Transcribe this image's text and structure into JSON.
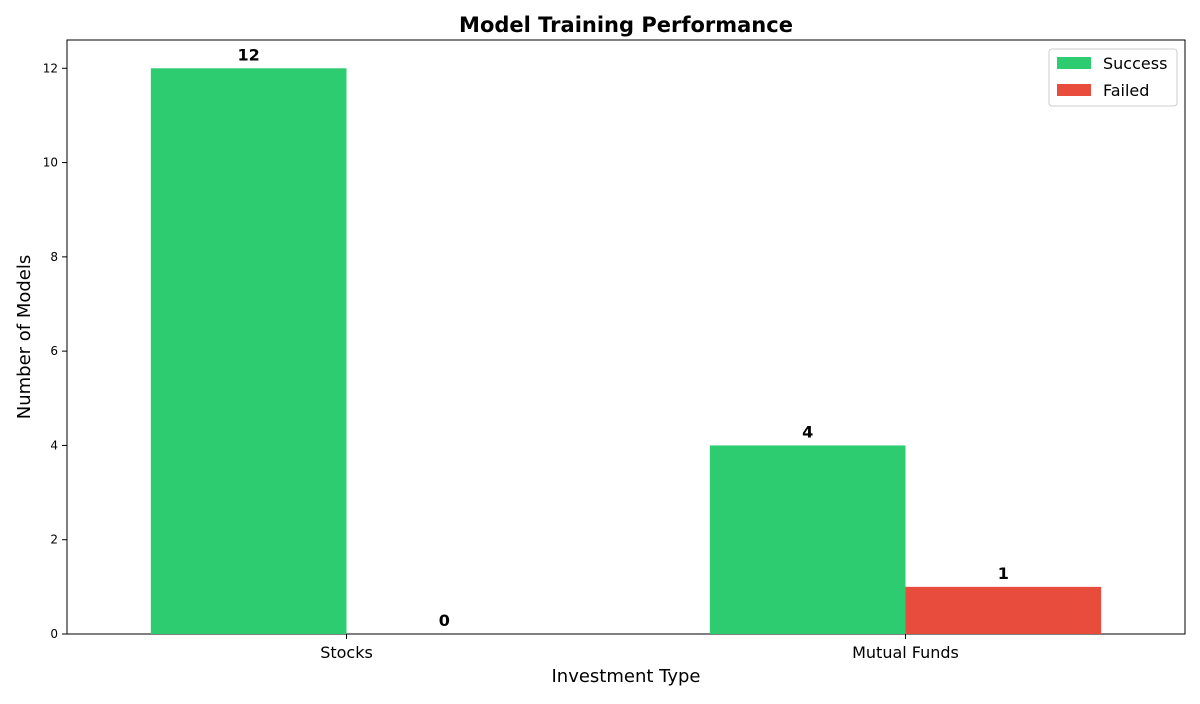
{
  "chart_data": {
    "type": "bar",
    "title": "Model Training Performance",
    "xlabel": "Investment Type",
    "ylabel": "Number of Models",
    "categories": [
      "Stocks",
      "Mutual Funds"
    ],
    "series": [
      {
        "name": "Success",
        "values": [
          12,
          4
        ],
        "color": "#2ecc71"
      },
      {
        "name": "Failed",
        "values": [
          0,
          1
        ],
        "color": "#e74c3c"
      }
    ],
    "ylim": [
      0,
      12.6
    ],
    "yticks": [
      0,
      2,
      4,
      6,
      8,
      10,
      12
    ],
    "grid": false,
    "legend_position": "top-right"
  }
}
